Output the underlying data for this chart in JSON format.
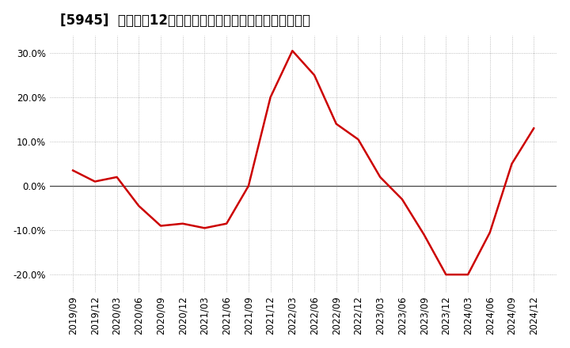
{
  "title": "[5945]  売上高の12か月移動合計の対前年同期増減率の推移",
  "x_labels": [
    "2019/09",
    "2019/12",
    "2020/03",
    "2020/06",
    "2020/09",
    "2020/12",
    "2021/03",
    "2021/06",
    "2021/09",
    "2021/12",
    "2022/03",
    "2022/06",
    "2022/09",
    "2022/12",
    "2023/03",
    "2023/06",
    "2023/09",
    "2023/12",
    "2024/03",
    "2024/06",
    "2024/09",
    "2024/12"
  ],
  "values": [
    3.5,
    1.0,
    2.0,
    -4.5,
    -9.0,
    -8.5,
    -9.5,
    -8.5,
    0.0,
    20.0,
    30.5,
    25.0,
    14.0,
    10.5,
    2.0,
    -3.0,
    -11.0,
    -20.0,
    -20.0,
    -10.5,
    5.0,
    13.0
  ],
  "line_color": "#cc0000",
  "background_color": "#ffffff",
  "plot_bg_color": "#ffffff",
  "yticks": [
    -20.0,
    -10.0,
    0.0,
    10.0,
    20.0,
    30.0
  ],
  "ylim": [
    -24.0,
    34.0
  ],
  "grid_color": "#aaaaaa",
  "zero_line_color": "#444444",
  "title_fontsize": 12,
  "tick_fontsize": 8.5
}
